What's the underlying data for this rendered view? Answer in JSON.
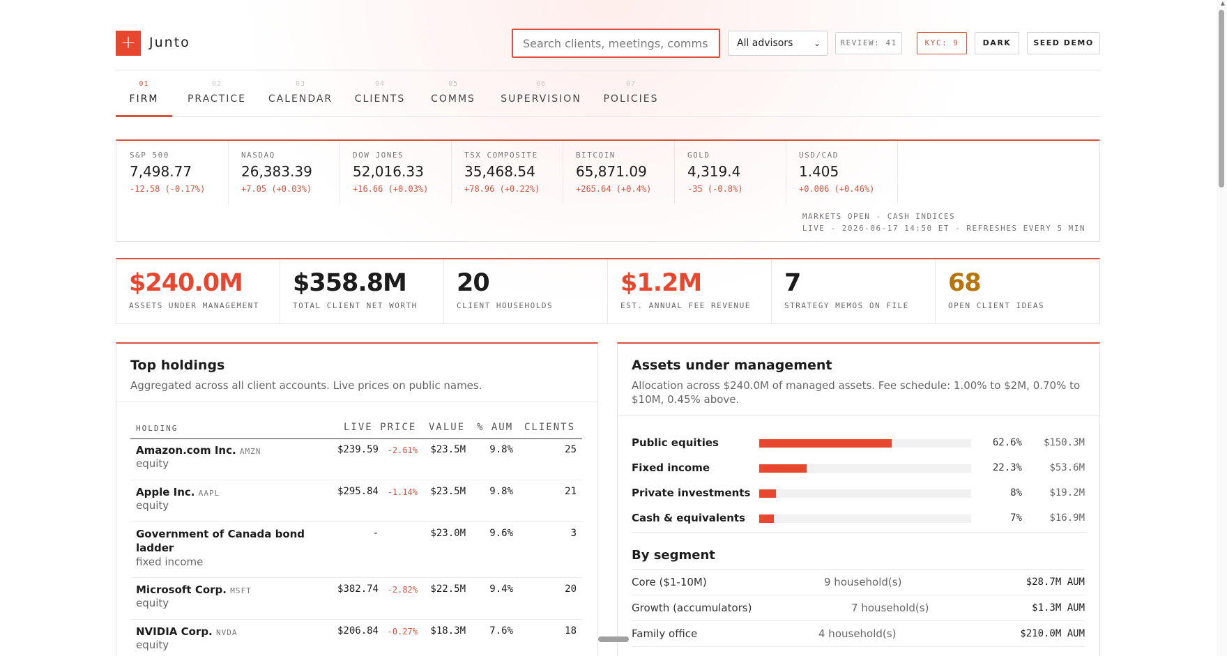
{
  "app": {
    "brand": "Junto",
    "logo_glyph": "+",
    "accent": "#e8472f"
  },
  "header": {
    "search_placeholder": "Search clients, meetings, comms",
    "advisor_select": "All advisors",
    "review_label": "REVIEW: 41",
    "kyc_label": "KYC: 9",
    "dark_label": "DARK",
    "seed_label": "SEED DEMO"
  },
  "tabs": [
    {
      "num": "01",
      "label": "FIRM",
      "active": true
    },
    {
      "num": "02",
      "label": "PRACTICE"
    },
    {
      "num": "03",
      "label": "CALENDAR"
    },
    {
      "num": "04",
      "label": "CLIENTS"
    },
    {
      "num": "05",
      "label": "COMMS"
    },
    {
      "num": "06",
      "label": "SUPERVISION"
    },
    {
      "num": "07",
      "label": "POLICIES"
    }
  ],
  "markets": {
    "tickers": [
      {
        "name": "S&P 500",
        "price": "7,498.77",
        "change": "-12.58 (-0.17%)"
      },
      {
        "name": "NASDAQ",
        "price": "26,383.39",
        "change": "+7.05 (+0.03%)"
      },
      {
        "name": "DOW JONES",
        "price": "52,016.33",
        "change": "+16.66 (+0.03%)"
      },
      {
        "name": "TSX COMPOSITE",
        "price": "35,468.54",
        "change": "+78.96 (+0.22%)"
      },
      {
        "name": "BITCOIN",
        "price": "65,871.09",
        "change": "+265.64 (+0.4%)"
      },
      {
        "name": "GOLD",
        "price": "4,319.4",
        "change": "-35 (-0.8%)"
      },
      {
        "name": "USD/CAD",
        "price": "1.405",
        "change": "+0.006 (+0.46%)"
      }
    ],
    "status_line1": "MARKETS OPEN - CASH INDICES",
    "status_line2": "LIVE - 2026-06-17 14:50 ET - REFRESHES EVERY 5 MIN"
  },
  "kpis": [
    {
      "value": "$240.0M",
      "caption": "ASSETS UNDER MANAGEMENT",
      "color": "#e8472f"
    },
    {
      "value": "$358.8M",
      "caption": "TOTAL CLIENT NET WORTH",
      "color": "#1c1c1c"
    },
    {
      "value": "20",
      "caption": "CLIENT HOUSEHOLDS",
      "color": "#1c1c1c"
    },
    {
      "value": "$1.2M",
      "caption": "EST. ANNUAL FEE REVENUE",
      "color": "#e8472f"
    },
    {
      "value": "7",
      "caption": "STRATEGY MEMOS ON FILE",
      "color": "#1c1c1c"
    },
    {
      "value": "68",
      "caption": "OPEN CLIENT IDEAS",
      "color": "#b5760a"
    }
  ],
  "holdings": {
    "title": "Top holdings",
    "subtitle": "Aggregated across all client accounts. Live prices on public names.",
    "columns": {
      "holding": "HOLDING",
      "price": "LIVE PRICE",
      "value": "VALUE",
      "aum": "% AUM",
      "clients": "CLIENTS"
    },
    "rows": [
      {
        "name": "Amazon.com Inc.",
        "ticker": "AMZN",
        "class": "equity",
        "price": "$239.59",
        "change": "-2.61%",
        "value": "$23.5M",
        "aum": "9.8%",
        "clients": "25"
      },
      {
        "name": "Apple Inc.",
        "ticker": "AAPL",
        "class": "equity",
        "price": "$295.84",
        "change": "-1.14%",
        "value": "$23.5M",
        "aum": "9.8%",
        "clients": "21"
      },
      {
        "name": "Government of Canada bond ladder",
        "ticker": "",
        "class": "fixed income",
        "price": "-",
        "change": "",
        "value": "$23.0M",
        "aum": "9.6%",
        "clients": "3"
      },
      {
        "name": "Microsoft Corp.",
        "ticker": "MSFT",
        "class": "equity",
        "price": "$382.74",
        "change": "-2.82%",
        "value": "$22.5M",
        "aum": "9.4%",
        "clients": "20"
      },
      {
        "name": "NVIDIA Corp.",
        "ticker": "NVDA",
        "class": "equity",
        "price": "$206.84",
        "change": "-0.27%",
        "value": "$18.3M",
        "aum": "7.6%",
        "clients": "18"
      }
    ]
  },
  "aum_panel": {
    "title": "Assets under management",
    "subtitle": "Allocation across $240.0M of managed assets. Fee schedule: 1.00% to $2M, 0.70% to $10M, 0.45% above.",
    "allocations": [
      {
        "label": "Public equities",
        "pct": "62.6%",
        "fraction": 0.626,
        "amount": "$150.3M"
      },
      {
        "label": "Fixed income",
        "pct": "22.3%",
        "fraction": 0.223,
        "amount": "$53.6M"
      },
      {
        "label": "Private investments",
        "pct": "8%",
        "fraction": 0.08,
        "amount": "$19.2M"
      },
      {
        "label": "Cash & equivalents",
        "pct": "7%",
        "fraction": 0.07,
        "amount": "$16.9M"
      }
    ],
    "segment_title": "By segment",
    "segments": [
      {
        "name": "Core ($1-10M)",
        "households": "9 household(s)",
        "aum": "$28.7M AUM"
      },
      {
        "name": "Growth (accumulators)",
        "households": "7 household(s)",
        "aum": "$1.3M AUM"
      },
      {
        "name": "Family office",
        "households": "4 household(s)",
        "aum": "$210.0M AUM"
      }
    ]
  }
}
